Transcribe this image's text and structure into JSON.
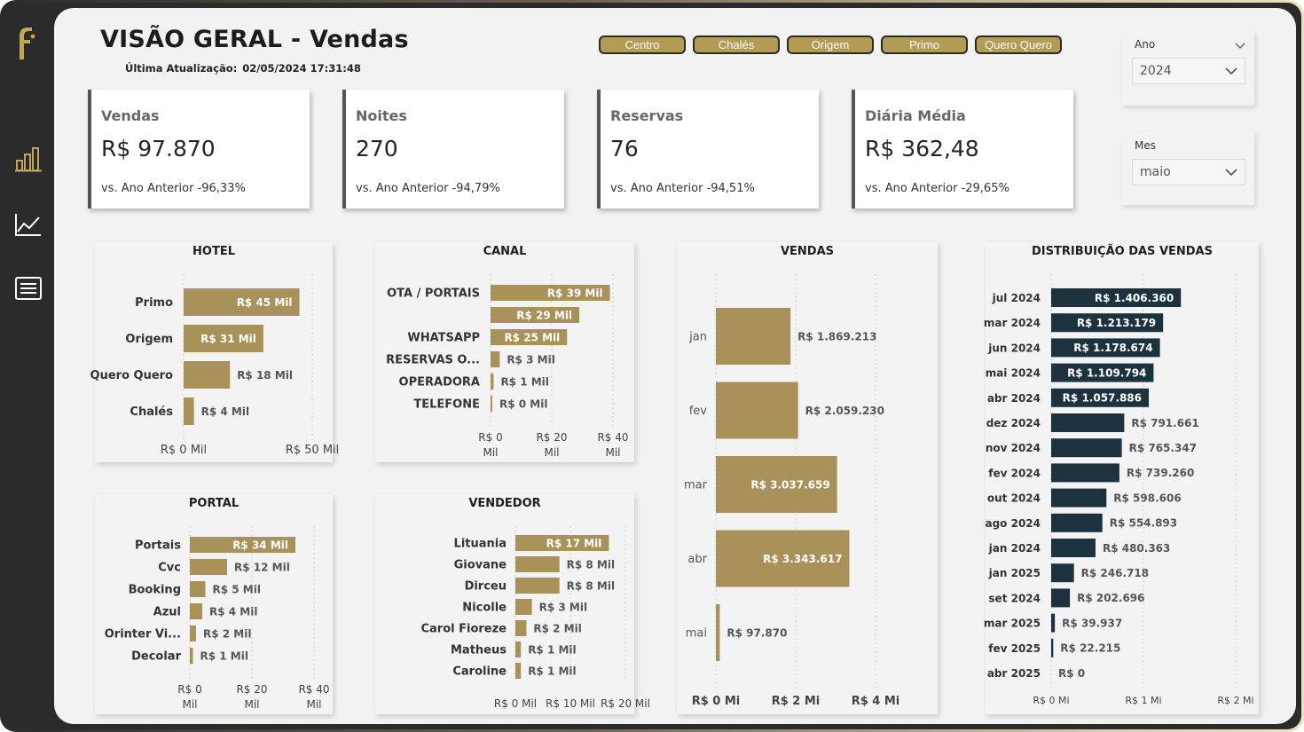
{
  "header": {
    "title": "VISÃO GERAL - Vendas",
    "update_label": "Última Atualização:",
    "update_value": "02/05/2024 17:31:48"
  },
  "filters": [
    "Centro",
    "Chalés",
    "Origem",
    "Primo",
    "Quero Quero"
  ],
  "kpis": [
    {
      "title": "Vendas",
      "value": "R$ 97.870",
      "comparison": "vs. Ano Anterior -96,33%"
    },
    {
      "title": "Noites",
      "value": "270",
      "comparison": "vs. Ano Anterior -94,79%"
    },
    {
      "title": "Reservas",
      "value": "76",
      "comparison": "vs. Ano Anterior -94,51%"
    },
    {
      "title": "Diária Média",
      "value": "R$ 362,48",
      "comparison": "vs. Ano Anterior -29,65%"
    }
  ],
  "slicers": {
    "ano": {
      "label": "Ano",
      "value": "2024"
    },
    "mes": {
      "label": "Mes",
      "value": "maio"
    }
  },
  "colors": {
    "gold": "#a8925a",
    "navy": "#1c323e",
    "dark": "#2b2b2b"
  },
  "icons": {
    "logo": "brand-f-logo",
    "nav": [
      "bar-chart-icon",
      "line-chart-icon",
      "list-icon"
    ]
  },
  "chart_data": [
    {
      "id": "hotel",
      "type": "bar",
      "orientation": "horizontal",
      "title": "HOTEL",
      "categories": [
        "Primo",
        "Origem",
        "Quero Quero",
        "Chalés"
      ],
      "values": [
        45,
        31,
        18,
        4
      ],
      "labels": [
        "R$ 45 Mil",
        "R$ 31 Mil",
        "R$ 18 Mil",
        "R$ 4 Mil"
      ],
      "xlim": [
        0,
        50
      ],
      "ticks": [
        {
          "v": 0,
          "label": [
            "R$ 0 Mil"
          ]
        },
        {
          "v": 50,
          "label": [
            "R$ 50 Mil"
          ]
        }
      ]
    },
    {
      "id": "canal",
      "type": "bar",
      "orientation": "horizontal",
      "title": "CANAL",
      "categories": [
        "OTA / PORTAIS",
        "",
        "WHATSAPP",
        "RESERVAS O...",
        "OPERADORA",
        "TELEFONE"
      ],
      "values": [
        39,
        29,
        25,
        3,
        1,
        0.3
      ],
      "labels": [
        "R$ 39 Mil",
        "R$ 29 Mil",
        "R$ 25 Mil",
        "R$ 3 Mil",
        "R$ 1 Mil",
        "R$ 0 Mil"
      ],
      "xlim": [
        0,
        40
      ],
      "ticks": [
        {
          "v": 0,
          "label": [
            "R$ 0",
            "Mil"
          ]
        },
        {
          "v": 20,
          "label": [
            "R$ 20",
            "Mil"
          ]
        },
        {
          "v": 40,
          "label": [
            "R$ 40",
            "Mil"
          ]
        }
      ]
    },
    {
      "id": "vendas",
      "type": "bar",
      "orientation": "horizontal",
      "title": "VENDAS",
      "categories": [
        "jan",
        "fev",
        "mar",
        "abr",
        "mai"
      ],
      "values": [
        1869213,
        2059230,
        3037659,
        3343617,
        97870
      ],
      "labels": [
        "R$ 1.869.213",
        "R$ 2.059.230",
        "R$ 3.037.659",
        "R$ 3.343.617",
        "R$ 97.870"
      ],
      "xlim": [
        0,
        4000000
      ],
      "ticks": [
        {
          "v": 0,
          "label": [
            "R$ 0 Mi"
          ]
        },
        {
          "v": 2000000,
          "label": [
            "R$ 2 Mi"
          ]
        },
        {
          "v": 4000000,
          "label": [
            "R$ 4 Mi"
          ]
        }
      ]
    },
    {
      "id": "distribuicao",
      "type": "bar",
      "orientation": "horizontal",
      "title": "DISTRIBUIÇÃO DAS VENDAS",
      "categories": [
        "jul 2024",
        "mar 2024",
        "jun 2024",
        "mai 2024",
        "abr 2024",
        "dez 2024",
        "nov 2024",
        "fev 2024",
        "out 2024",
        "ago 2024",
        "jan 2024",
        "jan 2025",
        "set 2024",
        "mar 2025",
        "fev 2025",
        "abr 2025"
      ],
      "values": [
        1406360,
        1213179,
        1178674,
        1109794,
        1057886,
        791661,
        765347,
        739260,
        598606,
        554893,
        480363,
        246718,
        202696,
        39937,
        22215,
        0
      ],
      "labels": [
        "R$ 1.406.360",
        "R$ 1.213.179",
        "R$ 1.178.674",
        "R$ 1.109.794",
        "R$ 1.057.886",
        "R$ 791.661",
        "R$ 765.347",
        "R$ 739.260",
        "R$ 598.606",
        "R$ 554.893",
        "R$ 480.363",
        "R$ 246.718",
        "R$ 202.696",
        "R$ 39.937",
        "R$ 22.215",
        "R$ 0"
      ],
      "xlim": [
        0,
        2000000
      ],
      "ticks": [
        {
          "v": 0,
          "label": [
            "R$ 0 Mi"
          ]
        },
        {
          "v": 1000000,
          "label": [
            "R$ 1 Mi"
          ]
        },
        {
          "v": 2000000,
          "label": [
            "R$ 2 Mi"
          ]
        }
      ]
    },
    {
      "id": "portal",
      "type": "bar",
      "orientation": "horizontal",
      "title": "PORTAL",
      "categories": [
        "Portais",
        "Cvc",
        "Booking",
        "Azul",
        "Orinter Vi...",
        "Decolar"
      ],
      "values": [
        34,
        12,
        5,
        4,
        2,
        1
      ],
      "labels": [
        "R$ 34 Mil",
        "R$ 12 Mil",
        "R$ 5 Mil",
        "R$ 4 Mil",
        "R$ 2 Mil",
        "R$ 1 Mil"
      ],
      "xlim": [
        0,
        40
      ],
      "ticks": [
        {
          "v": 0,
          "label": [
            "R$ 0",
            "Mil"
          ]
        },
        {
          "v": 20,
          "label": [
            "R$ 20",
            "Mil"
          ]
        },
        {
          "v": 40,
          "label": [
            "R$ 40",
            "Mil"
          ]
        }
      ]
    },
    {
      "id": "vendedor",
      "type": "bar",
      "orientation": "horizontal",
      "title": "VENDEDOR",
      "categories": [
        "Lituania",
        "Giovane",
        "Dirceu",
        "Nicolle",
        "Carol Fioreze",
        "Matheus",
        "Caroline"
      ],
      "values": [
        17,
        8,
        8,
        3,
        2,
        1,
        1
      ],
      "labels": [
        "R$ 17 Mil",
        "R$ 8 Mil",
        "R$ 8 Mil",
        "R$ 3 Mil",
        "R$ 2 Mil",
        "R$ 1 Mil",
        "R$ 1 Mil"
      ],
      "xlim": [
        0,
        20
      ],
      "ticks": [
        {
          "v": 0,
          "label": [
            "R$ 0 Mil"
          ]
        },
        {
          "v": 10,
          "label": [
            "R$ 10 Mil"
          ]
        },
        {
          "v": 20,
          "label": [
            "R$ 20 Mil"
          ]
        }
      ]
    }
  ]
}
